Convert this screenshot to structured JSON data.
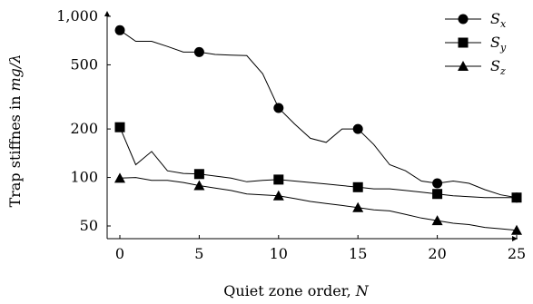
{
  "chart_data": {
    "type": "line",
    "x_axis": {
      "label_prefix": "Quiet zone order, ",
      "label_var": "N",
      "range": [
        0,
        25
      ],
      "ticks": [
        0,
        5,
        10,
        15,
        20,
        25
      ],
      "tick_labels": [
        "0",
        "5",
        "10",
        "15",
        "20",
        "25"
      ]
    },
    "y_axis": {
      "label_prefix": "Trap stiffnes in ",
      "label_unit": "mg/λ",
      "scale": "log",
      "range": [
        40,
        1000
      ],
      "ticks": [
        50,
        100,
        200,
        500,
        1000
      ],
      "tick_labels": [
        "50",
        "100",
        "200",
        "500",
        "1,000"
      ]
    },
    "legend": {
      "position": "top-right"
    },
    "series": [
      {
        "name": "S",
        "subscript": "x",
        "marker": "circle",
        "x": [
          0,
          1,
          2,
          3,
          4,
          5,
          6,
          7,
          8,
          9,
          10,
          11,
          12,
          13,
          14,
          15,
          16,
          17,
          18,
          19,
          20,
          21,
          22,
          23,
          24,
          25
        ],
        "y": [
          820,
          700,
          700,
          650,
          600,
          600,
          580,
          575,
          570,
          440,
          270,
          215,
          175,
          165,
          200,
          200,
          160,
          120,
          110,
          95,
          92,
          95,
          92,
          84,
          78,
          75
        ],
        "marker_x": [
          0,
          5,
          10,
          15,
          20,
          25
        ]
      },
      {
        "name": "S",
        "subscript": "y",
        "marker": "square",
        "x": [
          0,
          1,
          2,
          3,
          4,
          5,
          6,
          7,
          8,
          9,
          10,
          11,
          12,
          13,
          14,
          15,
          16,
          17,
          18,
          19,
          20,
          21,
          22,
          23,
          24,
          25
        ],
        "y": [
          205,
          120,
          145,
          110,
          106,
          105,
          102,
          99,
          94,
          96,
          97,
          95,
          93,
          91,
          89,
          87,
          85,
          85,
          83,
          81,
          79,
          77,
          76,
          75,
          75,
          75
        ],
        "marker_x": [
          0,
          5,
          10,
          15,
          20,
          25
        ]
      },
      {
        "name": "S",
        "subscript": "z",
        "marker": "triangle",
        "x": [
          0,
          1,
          2,
          3,
          4,
          5,
          6,
          7,
          8,
          9,
          10,
          11,
          12,
          13,
          14,
          15,
          16,
          17,
          18,
          19,
          20,
          21,
          22,
          23,
          24,
          25
        ],
        "y": [
          99,
          100,
          96,
          96,
          93,
          89,
          86,
          83,
          79,
          78,
          77,
          74,
          71,
          69,
          67,
          65,
          63,
          62,
          59,
          56,
          54,
          52,
          51,
          49,
          48,
          47
        ],
        "marker_x": [
          0,
          5,
          10,
          15,
          20,
          25
        ]
      }
    ]
  }
}
